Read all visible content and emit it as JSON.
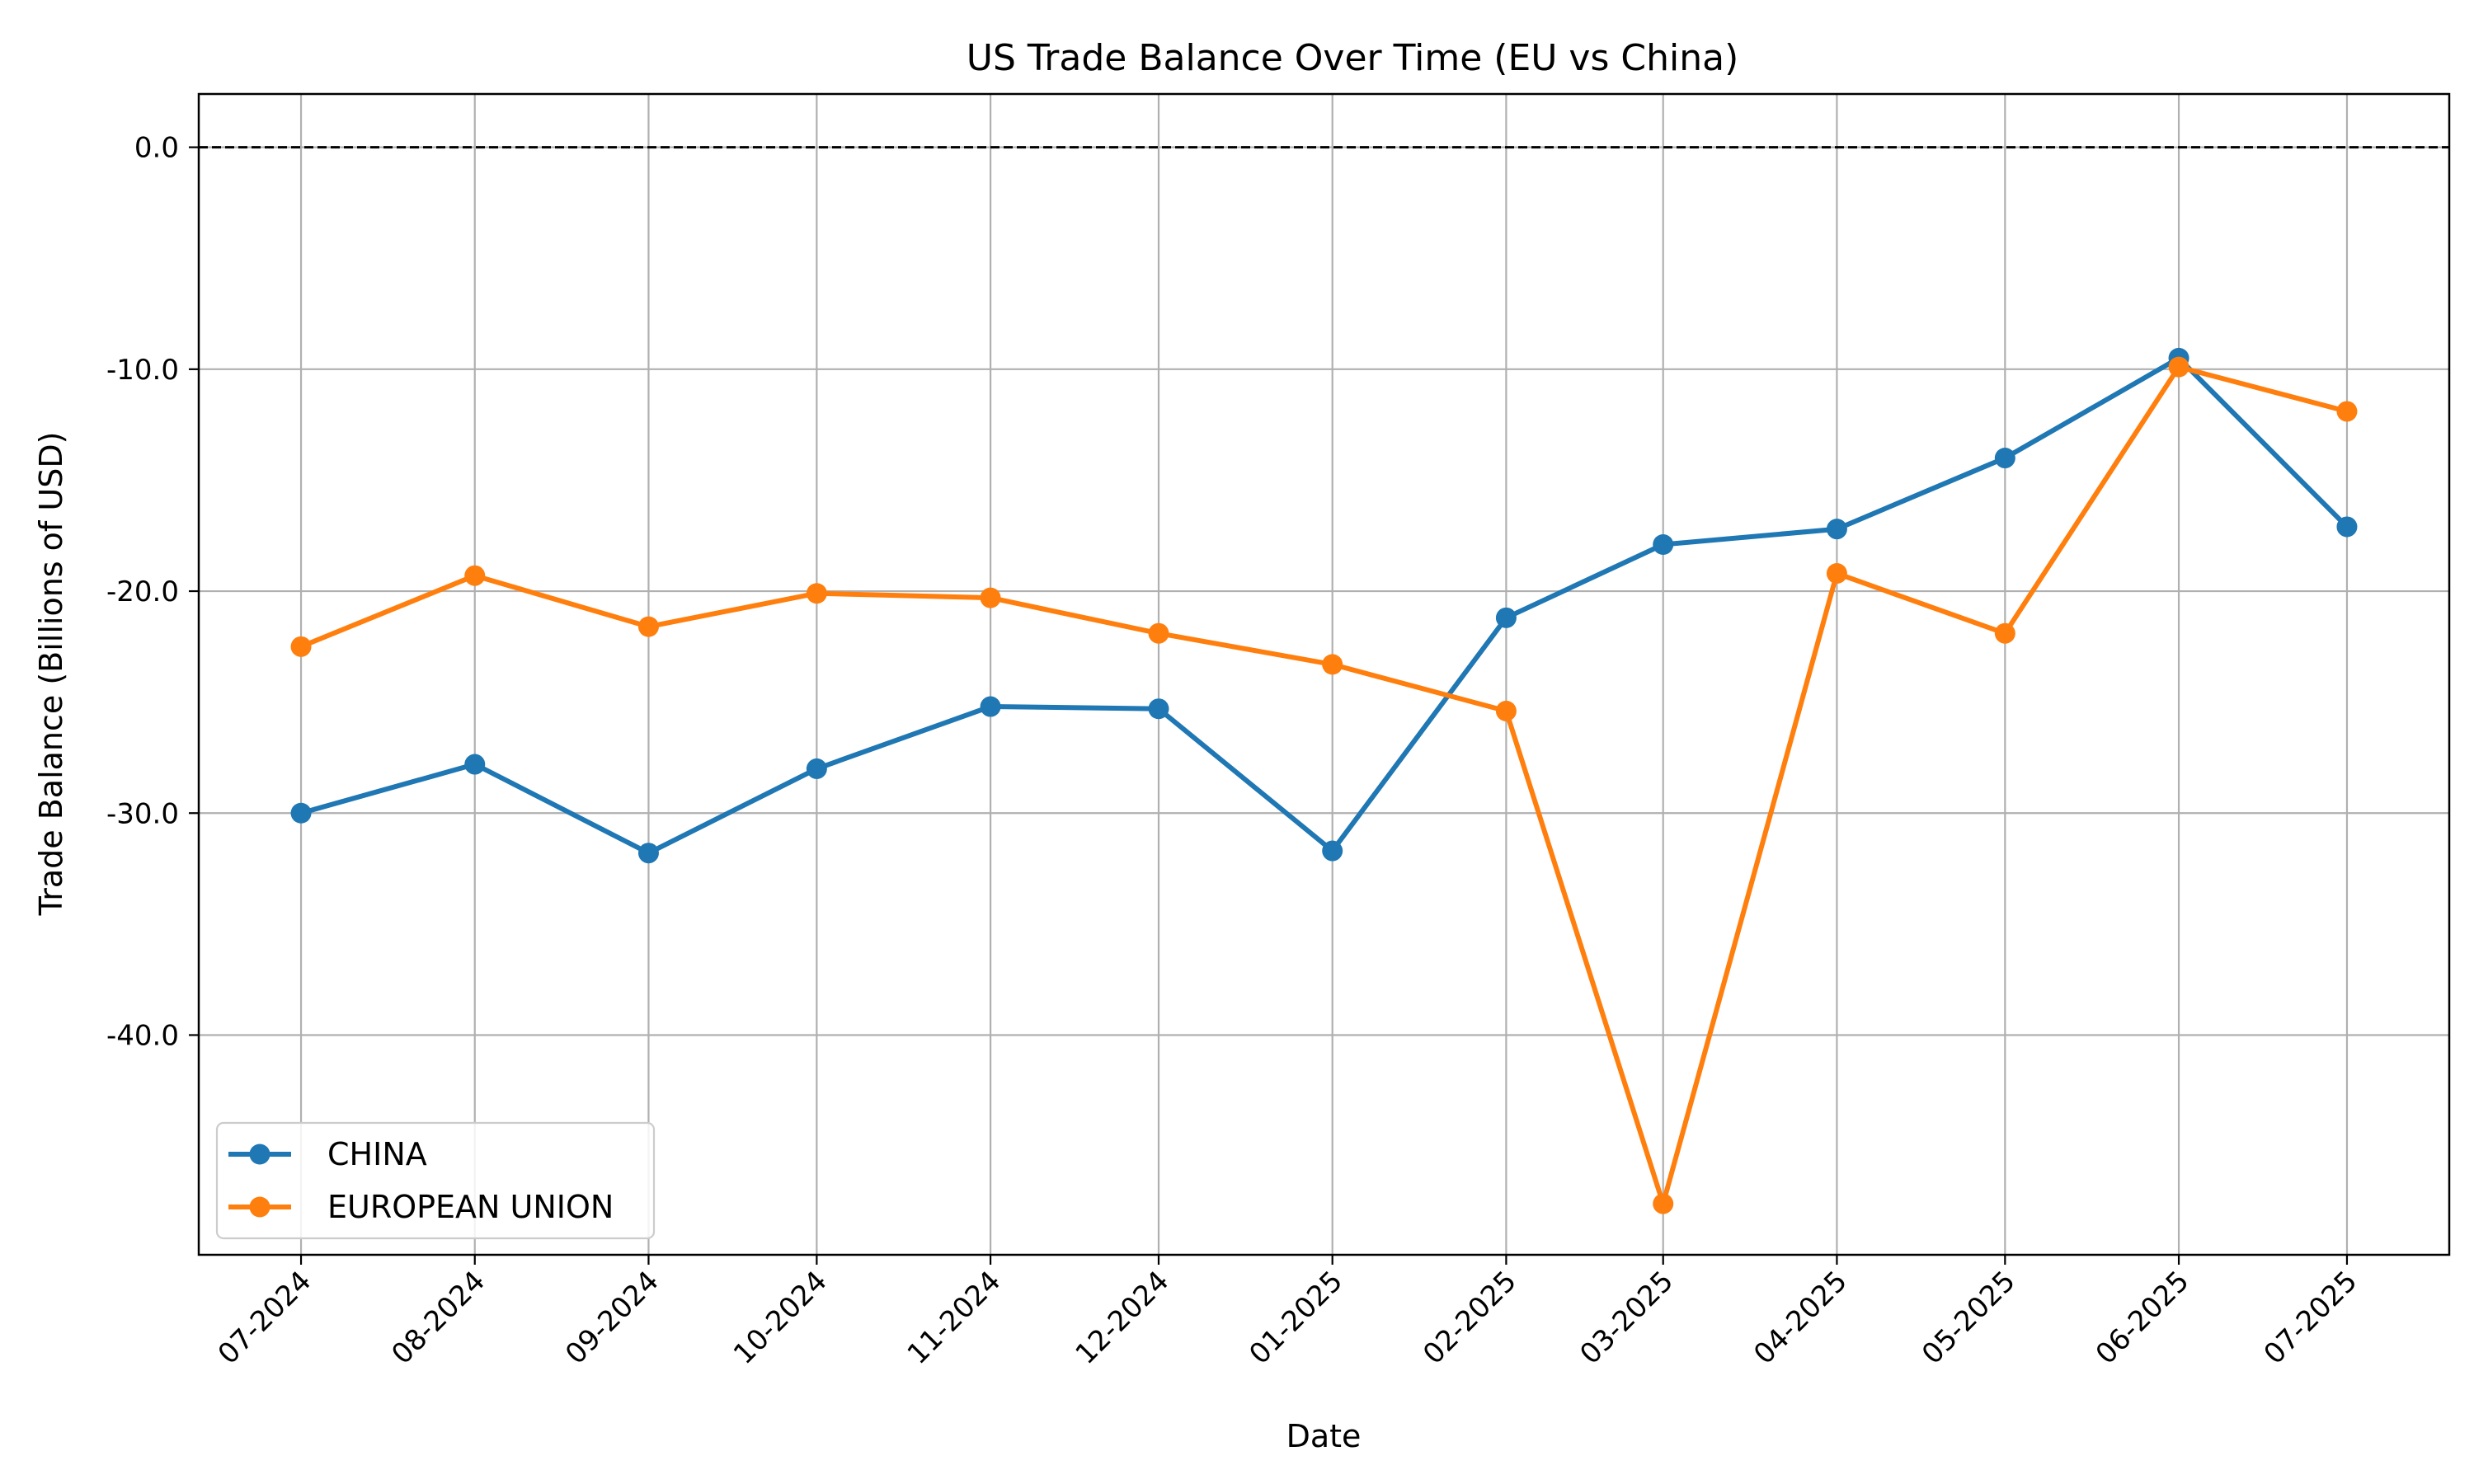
{
  "chart_data": {
    "type": "line",
    "title": "US Trade Balance Over Time (EU vs China)",
    "xlabel": "Date",
    "ylabel": "Trade Balance (Billions of USD)",
    "categories": [
      "07-2024",
      "08-2024",
      "09-2024",
      "10-2024",
      "11-2024",
      "12-2024",
      "01-2025",
      "02-2025",
      "03-2025",
      "04-2025",
      "05-2025",
      "06-2025",
      "07-2025"
    ],
    "x_dates": [
      "2024-07-01",
      "2024-08-01",
      "2024-09-01",
      "2024-10-01",
      "2024-11-01",
      "2024-12-01",
      "2025-01-01",
      "2025-02-01",
      "2025-03-01",
      "2025-04-01",
      "2025-05-01",
      "2025-06-01",
      "2025-07-01"
    ],
    "yticks": [
      "0.0",
      "-10.0",
      "-20.0",
      "-30.0",
      "-40.0"
    ],
    "ytick_values": [
      0,
      -10,
      -20,
      -30,
      -40
    ],
    "ylim": [
      -49.9,
      2.4
    ],
    "reference_line": {
      "y": 0,
      "style": "dashed",
      "color": "#000000"
    },
    "grid": true,
    "legend_position": "lower-left",
    "series": [
      {
        "name": "CHINA",
        "color": "#1f77b4",
        "values": [
          -30.0,
          -27.8,
          -31.8,
          -28.0,
          -25.2,
          -25.3,
          -31.7,
          -21.2,
          -17.9,
          -17.2,
          -14.0,
          -9.5,
          -17.1
        ]
      },
      {
        "name": "EUROPEAN UNION",
        "color": "#ff7f0e",
        "values": [
          -22.5,
          -19.3,
          -21.6,
          -20.1,
          -20.3,
          -21.9,
          -23.3,
          -25.4,
          -47.6,
          -19.2,
          -21.9,
          -9.9,
          -11.9
        ]
      }
    ]
  }
}
